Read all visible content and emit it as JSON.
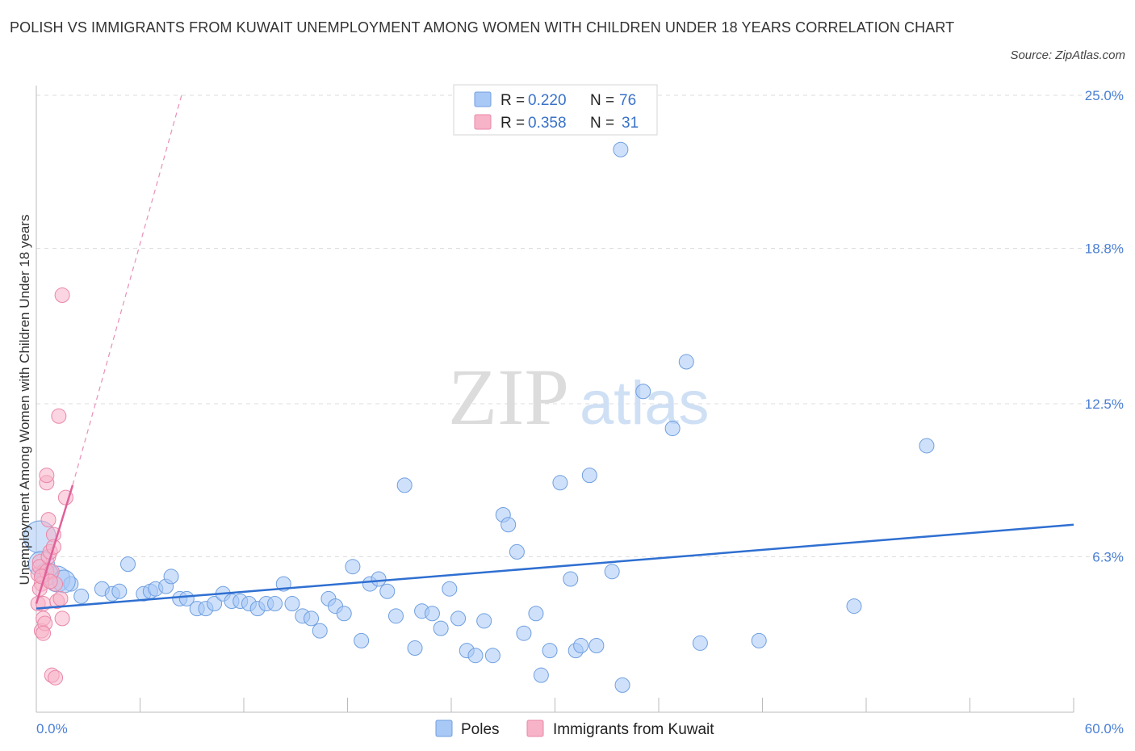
{
  "title": "POLISH VS IMMIGRANTS FROM KUWAIT UNEMPLOYMENT AMONG WOMEN WITH CHILDREN UNDER 18 YEARS CORRELATION CHART",
  "source": "Source: ZipAtlas.com",
  "watermark": {
    "zip": "ZIP",
    "atlas": "atlas"
  },
  "legend_top": {
    "rows": [
      {
        "r_label": "R = ",
        "r_value": "0.220",
        "n_label": "N = ",
        "n_value": "76",
        "color": "#a8c8f5"
      },
      {
        "r_label": "R = ",
        "r_value": "0.358",
        "n_label": "N = ",
        "n_value": "31",
        "color": "#f7b3c8"
      }
    ]
  },
  "legend_bottom": {
    "poles": "Poles",
    "kuwait": "Immigrants from Kuwait"
  },
  "chart_data": {
    "type": "scatter",
    "xlabel": "",
    "ylabel": "Unemployment Among Women with Children Under 18 years",
    "xlim": [
      0,
      60
    ],
    "ylim": [
      0,
      25
    ],
    "x_tick_labels": [
      "0.0%",
      "60.0%"
    ],
    "y_ticks": [
      6.3,
      12.5,
      18.8,
      25.0
    ],
    "y_tick_labels": [
      "6.3%",
      "12.5%",
      "18.8%",
      "25.0%"
    ],
    "grid": "horizontal dashed",
    "legend_position": "top-center",
    "series": [
      {
        "name": "Poles",
        "color": "#a8c8f5",
        "stroke": "#6f9fe0",
        "trend": {
          "x": [
            0,
            60
          ],
          "y": [
            4.2,
            7.6
          ],
          "color": "#2f6fd1"
        },
        "points": [
          [
            0.2,
            7.1
          ],
          [
            0.3,
            6.0
          ],
          [
            1.2,
            5.4
          ],
          [
            2.0,
            5.2
          ],
          [
            2.6,
            4.7
          ],
          [
            3.8,
            5.0
          ],
          [
            4.4,
            4.8
          ],
          [
            4.8,
            4.9
          ],
          [
            5.3,
            6.0
          ],
          [
            6.2,
            4.8
          ],
          [
            6.6,
            4.9
          ],
          [
            6.9,
            5.0
          ],
          [
            7.5,
            5.1
          ],
          [
            7.8,
            5.5
          ],
          [
            8.3,
            4.6
          ],
          [
            8.7,
            4.6
          ],
          [
            9.3,
            4.2
          ],
          [
            9.8,
            4.2
          ],
          [
            10.3,
            4.4
          ],
          [
            10.8,
            4.8
          ],
          [
            11.3,
            4.5
          ],
          [
            11.8,
            4.5
          ],
          [
            12.3,
            4.4
          ],
          [
            12.8,
            4.2
          ],
          [
            13.3,
            4.4
          ],
          [
            13.8,
            4.4
          ],
          [
            14.3,
            5.2
          ],
          [
            14.8,
            4.4
          ],
          [
            15.4,
            3.9
          ],
          [
            15.9,
            3.8
          ],
          [
            16.4,
            3.3
          ],
          [
            16.9,
            4.6
          ],
          [
            17.3,
            4.3
          ],
          [
            17.8,
            4.0
          ],
          [
            18.3,
            5.9
          ],
          [
            18.8,
            2.9
          ],
          [
            19.3,
            5.2
          ],
          [
            19.8,
            5.4
          ],
          [
            20.3,
            4.9
          ],
          [
            20.8,
            3.9
          ],
          [
            21.3,
            9.2
          ],
          [
            21.9,
            2.6
          ],
          [
            22.3,
            4.1
          ],
          [
            22.9,
            4.0
          ],
          [
            23.4,
            3.4
          ],
          [
            23.9,
            5.0
          ],
          [
            24.4,
            3.8
          ],
          [
            24.9,
            2.5
          ],
          [
            25.4,
            2.3
          ],
          [
            25.9,
            3.7
          ],
          [
            26.4,
            2.3
          ],
          [
            27.0,
            8.0
          ],
          [
            27.3,
            7.6
          ],
          [
            27.8,
            6.5
          ],
          [
            28.2,
            3.2
          ],
          [
            28.9,
            4.0
          ],
          [
            29.2,
            1.5
          ],
          [
            29.7,
            2.5
          ],
          [
            30.3,
            9.3
          ],
          [
            30.9,
            5.4
          ],
          [
            31.2,
            2.5
          ],
          [
            31.5,
            2.7
          ],
          [
            32.0,
            9.6
          ],
          [
            32.4,
            2.7
          ],
          [
            33.3,
            5.7
          ],
          [
            33.9,
            1.1
          ],
          [
            33.8,
            22.8
          ],
          [
            35.1,
            13.0
          ],
          [
            36.8,
            11.5
          ],
          [
            37.6,
            14.2
          ],
          [
            38.4,
            2.8
          ],
          [
            41.8,
            2.9
          ],
          [
            47.3,
            4.3
          ],
          [
            51.5,
            10.8
          ],
          [
            0.6,
            5.6
          ],
          [
            1.6,
            5.3
          ]
        ]
      },
      {
        "name": "Immigrants from Kuwait",
        "color": "#f7b3c8",
        "stroke": "#e987a8",
        "trend": {
          "x": [
            0,
            2.1
          ],
          "y": [
            4.4,
            9.2
          ],
          "color": "#e0609a",
          "dashed_extension": {
            "x": [
              2.1,
              8.4
            ],
            "y": [
              9.2,
              25.0
            ]
          }
        },
        "points": [
          [
            0.1,
            5.6
          ],
          [
            0.1,
            4.4
          ],
          [
            0.2,
            6.1
          ],
          [
            0.2,
            5.9
          ],
          [
            0.3,
            3.3
          ],
          [
            0.3,
            5.2
          ],
          [
            0.4,
            4.4
          ],
          [
            0.4,
            3.8
          ],
          [
            0.5,
            3.6
          ],
          [
            0.6,
            9.3
          ],
          [
            0.6,
            9.6
          ],
          [
            0.6,
            5.7
          ],
          [
            0.7,
            6.3
          ],
          [
            0.7,
            7.8
          ],
          [
            0.8,
            6.5
          ],
          [
            0.9,
            5.7
          ],
          [
            0.9,
            1.5
          ],
          [
            1.0,
            7.2
          ],
          [
            1.0,
            6.7
          ],
          [
            1.1,
            5.2
          ],
          [
            1.1,
            1.4
          ],
          [
            1.2,
            4.5
          ],
          [
            1.3,
            12.0
          ],
          [
            1.4,
            4.6
          ],
          [
            1.5,
            3.8
          ],
          [
            1.5,
            16.9
          ],
          [
            1.7,
            8.7
          ],
          [
            0.2,
            5.0
          ],
          [
            0.4,
            3.2
          ],
          [
            0.3,
            5.5
          ],
          [
            0.8,
            5.3
          ]
        ]
      }
    ]
  }
}
